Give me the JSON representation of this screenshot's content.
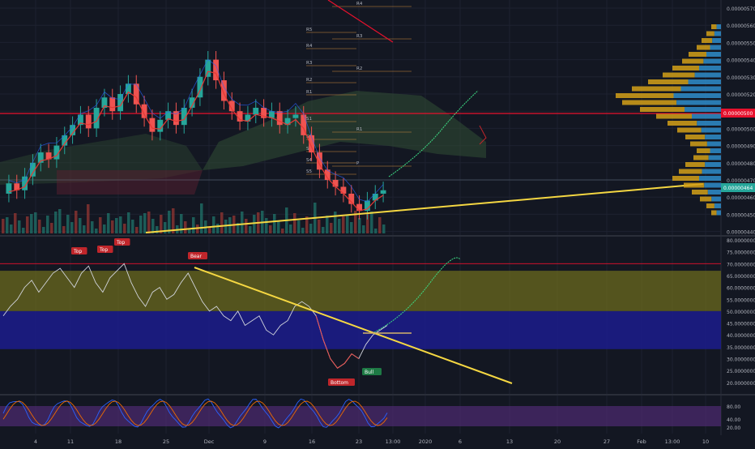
{
  "colors": {
    "background": "#131722",
    "grid": "#1e2230",
    "up": "#26a69a",
    "down": "#ef5350",
    "axis_text": "#b2b5be",
    "trendline": "#f5d742",
    "red_line": "#e8112d",
    "volume_profile_up": "#2e86c1",
    "volume_profile_down": "#d4a017",
    "rsi_line": "#d1d4dc",
    "rsi_upper_band": "#6b6a1e",
    "rsi_lower_band": "#1c1c8c",
    "stoch_band": "#4b2a6e",
    "projection": "#3ddc84",
    "cloud": "#2f4a34",
    "bear_label_bg": "#c0262b",
    "bull_label_bg": "#1e7a45"
  },
  "chart_data": [
    {
      "type": "candlestick",
      "ylim": [
        4.4e-06,
        5.7e-06
      ],
      "y_ticks": [
        "0.00000570",
        "0.00000560",
        "0.00000550",
        "0.00000540",
        "0.00000530",
        "0.00000520",
        "0.00000510",
        "0.00000500",
        "0.00000490",
        "0.00000480",
        "0.00000470",
        "0.00000460",
        "0.00000450",
        "0.00000440"
      ],
      "current_price_label": "0.00000500",
      "last_price_tag": "0.00000464",
      "pivot_labels": [
        "R4",
        "R5",
        "R3",
        "R4",
        "R3",
        "R2",
        "R2",
        "R1",
        "R1",
        "P",
        "S1",
        "S2",
        "S3",
        "S4",
        "S5"
      ],
      "candles_open_close_sample": [
        [
          4.62,
          4.68
        ],
        [
          4.68,
          4.64
        ],
        [
          4.64,
          4.72
        ],
        [
          4.72,
          4.8
        ],
        [
          4.8,
          4.86
        ],
        [
          4.86,
          4.82
        ],
        [
          4.82,
          4.9
        ],
        [
          4.9,
          4.96
        ],
        [
          4.96,
          5.02
        ],
        [
          5.02,
          5.08
        ],
        [
          5.08,
          5.0
        ],
        [
          5.0,
          5.12
        ],
        [
          5.12,
          5.18
        ],
        [
          5.18,
          5.1
        ],
        [
          5.1,
          5.2
        ],
        [
          5.2,
          5.26
        ],
        [
          5.26,
          5.14
        ],
        [
          5.14,
          5.06
        ],
        [
          5.06,
          4.98
        ],
        [
          4.98,
          5.05
        ],
        [
          5.05,
          5.1
        ],
        [
          5.1,
          5.02
        ],
        [
          5.02,
          5.12
        ],
        [
          5.12,
          5.18
        ],
        [
          5.18,
          5.3
        ],
        [
          5.3,
          5.4
        ],
        [
          5.4,
          5.28
        ],
        [
          5.28,
          5.16
        ],
        [
          5.16,
          5.1
        ],
        [
          5.1,
          5.04
        ],
        [
          5.04,
          5.08
        ],
        [
          5.08,
          5.12
        ],
        [
          5.12,
          5.06
        ],
        [
          5.06,
          5.1
        ],
        [
          5.1,
          5.02
        ],
        [
          5.02,
          5.06
        ],
        [
          5.06,
          5.08
        ],
        [
          5.08,
          4.96
        ],
        [
          4.96,
          4.86
        ],
        [
          4.86,
          4.76
        ],
        [
          4.76,
          4.7
        ],
        [
          4.7,
          4.66
        ],
        [
          4.66,
          4.62
        ],
        [
          4.62,
          4.56
        ],
        [
          4.56,
          4.52
        ],
        [
          4.52,
          4.58
        ],
        [
          4.58,
          4.62
        ],
        [
          4.62,
          4.64
        ]
      ],
      "trend_support": {
        "from_index": 12,
        "to": "right-edge"
      }
    },
    {
      "type": "line",
      "name": "RSI",
      "ylim": [
        20,
        80
      ],
      "y_ticks": [
        "80.00000000",
        "75.00000000",
        "70.00000000",
        "65.00000000",
        "60.00000000",
        "55.00000000",
        "50.00000000",
        "45.00000000",
        "40.00000000",
        "35.00000000",
        "30.00000000",
        "25.00000000",
        "20.00000000"
      ],
      "bands": {
        "upper": [
          50,
          67
        ],
        "lower": [
          34,
          50
        ],
        "overbought": 70
      },
      "values": [
        48,
        52,
        55,
        60,
        63,
        58,
        62,
        66,
        68,
        64,
        60,
        66,
        69,
        62,
        58,
        64,
        67,
        70,
        62,
        56,
        52,
        58,
        60,
        55,
        57,
        62,
        66,
        60,
        54,
        50,
        52,
        48,
        46,
        50,
        44,
        46,
        48,
        42,
        40,
        44,
        46,
        52,
        54,
        52,
        48,
        38,
        30,
        26,
        28,
        32,
        30,
        36,
        40,
        42,
        44
      ],
      "annotations": [
        {
          "label": "Top",
          "index": 9
        },
        {
          "label": "Top",
          "index": 12
        },
        {
          "label": "Top",
          "index": 17
        },
        {
          "label": "Bear",
          "index": 28
        },
        {
          "label": "Bottom",
          "index": 47
        },
        {
          "label": "Bull",
          "index": 51
        }
      ]
    },
    {
      "type": "line",
      "name": "Stoch",
      "ylim": [
        0,
        100
      ],
      "y_ticks": [
        "80.00",
        "40.00",
        "20.00"
      ],
      "band": [
        20,
        80
      ]
    }
  ],
  "x_axis_ticks": [
    "4",
    "11",
    "18",
    "25",
    "Dec",
    "9",
    "16",
    "23",
    "13:00",
    "2020",
    "6",
    "13",
    "20",
    "27",
    "Feb",
    "13:00",
    "10"
  ]
}
